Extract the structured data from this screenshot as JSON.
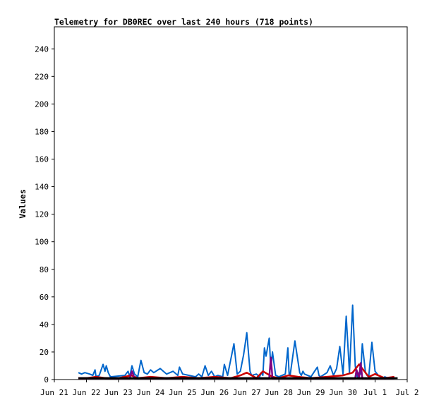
{
  "chart_data": {
    "type": "line",
    "title": "Telemetry for DB0REC over last 240 hours (718 points)",
    "xlabel": "",
    "ylabel": "Values",
    "x_tick_labels": [
      "Jun 21",
      "Jun 22",
      "Jun 23",
      "Jun 24",
      "Jun 25",
      "Jun 26",
      "Jun 27",
      "Jun 28",
      "Jun 29",
      "Jun 30",
      "Jul 1",
      "Jul 2"
    ],
    "x_range_days": [
      0,
      11
    ],
    "ylim": [
      0,
      256
    ],
    "yticks": [
      0,
      20,
      40,
      60,
      80,
      100,
      120,
      140,
      160,
      180,
      200,
      220,
      240
    ],
    "grid": false,
    "legend": "none",
    "series": [
      {
        "color": "#0066cc",
        "x": [
          0.75,
          0.85,
          0.95,
          1.1,
          1.2,
          1.27,
          1.3,
          1.4,
          1.52,
          1.58,
          1.62,
          1.68,
          1.75,
          2.2,
          2.3,
          2.35,
          2.42,
          2.5,
          2.55,
          2.6,
          2.7,
          2.8,
          2.9,
          3.0,
          3.1,
          3.3,
          3.5,
          3.7,
          3.85,
          3.9,
          4.0,
          4.2,
          4.4,
          4.5,
          4.6,
          4.7,
          4.8,
          4.9,
          5.0,
          5.1,
          5.25,
          5.3,
          5.4,
          5.6,
          5.7,
          5.8,
          5.9,
          5.95,
          6.0,
          6.1,
          6.15,
          6.3,
          6.4,
          6.45,
          6.5,
          6.55,
          6.6,
          6.7,
          6.75,
          6.8,
          6.9,
          7.0,
          7.2,
          7.28,
          7.32,
          7.35,
          7.5,
          7.65,
          7.7,
          7.75,
          7.8,
          8.0,
          8.2,
          8.25,
          8.3,
          8.5,
          8.6,
          8.7,
          8.8,
          8.9,
          9.0,
          9.1,
          9.2,
          9.3,
          9.38,
          9.42,
          9.45,
          9.5,
          9.55,
          9.6,
          9.7,
          9.75,
          9.8,
          9.9,
          10.0,
          10.1,
          10.2,
          10.25,
          10.3,
          10.4,
          10.5,
          10.55,
          10.6,
          10.7
        ],
        "y": [
          5,
          4,
          5,
          4,
          3,
          7,
          2,
          3,
          11,
          6,
          10,
          5,
          2,
          3,
          6,
          2,
          10,
          4,
          3,
          2,
          14,
          5,
          4,
          7,
          5,
          8,
          4,
          6,
          3,
          9,
          4,
          3,
          2,
          4,
          2,
          10,
          3,
          6,
          2,
          3,
          2,
          11,
          3,
          26,
          4,
          6,
          18,
          26,
          34,
          6,
          3,
          4,
          2,
          5,
          3,
          23,
          17,
          30,
          8,
          20,
          3,
          2,
          4,
          23,
          4,
          3,
          28,
          5,
          3,
          6,
          4,
          2,
          9,
          3,
          2,
          5,
          10,
          3,
          8,
          24,
          4,
          46,
          5,
          54,
          10,
          3,
          2,
          5,
          4,
          26,
          5,
          3,
          2,
          27,
          6,
          3,
          2,
          1,
          2,
          1,
          1,
          2,
          1,
          1
        ]
      },
      {
        "color": "#cc0000",
        "x": [
          0.75,
          1.0,
          1.3,
          1.6,
          2.0,
          2.4,
          2.6,
          3.0,
          3.5,
          4.0,
          4.5,
          5.0,
          5.5,
          5.8,
          6.0,
          6.3,
          6.5,
          6.8,
          7.0,
          7.3,
          7.6,
          8.0,
          8.5,
          9.0,
          9.3,
          9.5,
          9.8,
          10.0,
          10.3,
          10.6
        ],
        "y": [
          1,
          1,
          2,
          1,
          1,
          3,
          1,
          2,
          1,
          2,
          1,
          2,
          1,
          3,
          5,
          1,
          6,
          2,
          1,
          3,
          2,
          1,
          2,
          3,
          5,
          11,
          2,
          4,
          1,
          2
        ]
      },
      {
        "color": "#800080",
        "x": [
          0.75,
          2.0,
          2.35,
          2.42,
          2.5,
          2.8,
          3.0,
          5.0,
          6.7,
          6.75,
          6.8,
          7.0,
          9.0,
          9.38,
          9.42,
          9.5,
          9.55,
          9.6,
          10.0,
          10.6
        ],
        "y": [
          1,
          1,
          1,
          6,
          1,
          1,
          1,
          1,
          1,
          16,
          1,
          1,
          1,
          1,
          7,
          1,
          12,
          1,
          1,
          1
        ]
      },
      {
        "color": "#000000",
        "x": [
          0.75,
          10.7
        ],
        "y": [
          1,
          1
        ]
      }
    ]
  }
}
